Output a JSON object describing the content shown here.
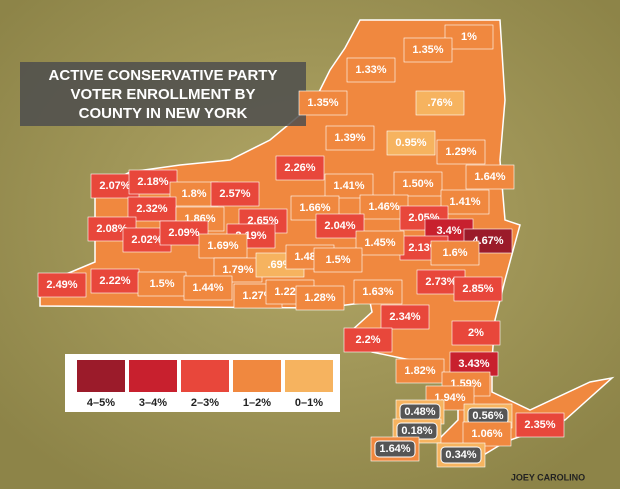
{
  "title_lines": [
    "ACTIVE CONSERVATIVE PARTY",
    "VOTER ENROLLMENT BY",
    "COUNTY IN NEW YORK"
  ],
  "credit": "JOEY CAROLINO",
  "legend": [
    {
      "label": "4–5%",
      "color": "#9b1b2a"
    },
    {
      "label": "3–4%",
      "color": "#c8202e"
    },
    {
      "label": "2–3%",
      "color": "#e8473b"
    },
    {
      "label": "1–2%",
      "color": "#f0883f"
    },
    {
      "label": "0–1%",
      "color": "#f6b35f"
    }
  ],
  "counties": [
    {
      "label": "1%",
      "color": "#f0883f"
    },
    {
      "label": "1.35%",
      "color": "#f0883f"
    },
    {
      "label": "1.33%",
      "color": "#f0883f"
    },
    {
      "label": ".76%",
      "color": "#f6b35f"
    },
    {
      "label": "1.35%",
      "color": "#f0883f"
    },
    {
      "label": "1.39%",
      "color": "#f0883f"
    },
    {
      "label": "0.95%",
      "color": "#f6b35f"
    },
    {
      "label": "1.29%",
      "color": "#f0883f"
    },
    {
      "label": "1.64%",
      "color": "#f0883f"
    },
    {
      "label": "2.07%",
      "color": "#e8473b"
    },
    {
      "label": "2.18%",
      "color": "#e8473b"
    },
    {
      "label": "1.8%",
      "color": "#f0883f"
    },
    {
      "label": "2.57%",
      "color": "#e8473b"
    },
    {
      "label": "2.26%",
      "color": "#e8473b"
    },
    {
      "label": "1.41%",
      "color": "#f0883f"
    },
    {
      "label": "1.50%",
      "color": "#f0883f"
    },
    {
      "label": "1.41%",
      "color": "#f0883f"
    },
    {
      "label": "2.32%",
      "color": "#e8473b"
    },
    {
      "label": "1.86%",
      "color": "#f0883f"
    },
    {
      "label": "2.65%",
      "color": "#e8473b"
    },
    {
      "label": "1.66%",
      "color": "#f0883f"
    },
    {
      "label": "1.46%",
      "color": "#f0883f"
    },
    {
      "label": "2.05%",
      "color": "#e8473b"
    },
    {
      "label": "3.4%",
      "color": "#c8202e"
    },
    {
      "label": "4.67%",
      "color": "#9b1b2a"
    },
    {
      "label": "2.08%",
      "color": "#e8473b"
    },
    {
      "label": "2.02%",
      "color": "#e8473b"
    },
    {
      "label": "2.09%",
      "color": "#e8473b"
    },
    {
      "label": "2.19%",
      "color": "#e8473b"
    },
    {
      "label": "2.04%",
      "color": "#e8473b"
    },
    {
      "label": "2.13%",
      "color": "#e8473b"
    },
    {
      "label": "1.6%",
      "color": "#f0883f"
    },
    {
      "label": "1.69%",
      "color": "#f0883f"
    },
    {
      "label": "1.45%",
      "color": "#f0883f"
    },
    {
      "label": "1.79%",
      "color": "#f0883f"
    },
    {
      "label": ".69%",
      "color": "#f6b35f"
    },
    {
      "label": "1.48%",
      "color": "#f0883f"
    },
    {
      "label": "1.5%",
      "color": "#f0883f"
    },
    {
      "label": "2.49%",
      "color": "#e8473b"
    },
    {
      "label": "2.22%",
      "color": "#e8473b"
    },
    {
      "label": "1.5%",
      "color": "#f0883f"
    },
    {
      "label": "1.44%",
      "color": "#f0883f"
    },
    {
      "label": "1.27%",
      "color": "#f0883f"
    },
    {
      "label": "1.22%",
      "color": "#f0883f"
    },
    {
      "label": "1.28%",
      "color": "#f0883f"
    },
    {
      "label": "1.63%",
      "color": "#f0883f"
    },
    {
      "label": "2.73%",
      "color": "#e8473b"
    },
    {
      "label": "2.85%",
      "color": "#e8473b"
    },
    {
      "label": "2.34%",
      "color": "#e8473b"
    },
    {
      "label": "2%",
      "color": "#e8473b"
    },
    {
      "label": "2.2%",
      "color": "#e8473b"
    },
    {
      "label": "1.82%",
      "color": "#f0883f"
    },
    {
      "label": "3.43%",
      "color": "#c8202e"
    },
    {
      "label": "1.59%",
      "color": "#f0883f"
    },
    {
      "label": "1.94%",
      "color": "#f0883f"
    },
    {
      "label": "0.48%",
      "color": "#f6b35f"
    },
    {
      "label": "0.56%",
      "color": "#f6b35f"
    },
    {
      "label": "2.35%",
      "color": "#e8473b"
    },
    {
      "label": "0.18%",
      "color": "#f6b35f"
    },
    {
      "label": "1.06%",
      "color": "#f0883f"
    },
    {
      "label": "1.64%",
      "color": "#f0883f"
    },
    {
      "label": "0.34%",
      "color": "#f6b35f"
    }
  ]
}
